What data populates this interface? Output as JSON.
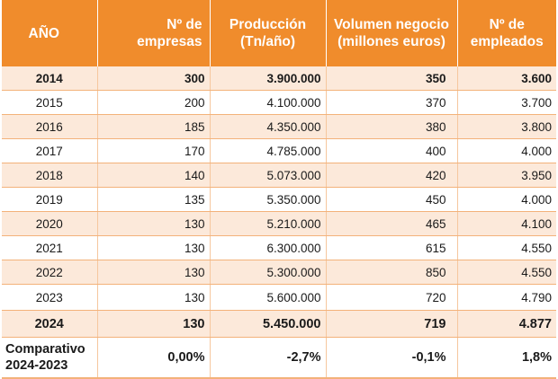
{
  "headers": [
    {
      "line1": "AÑO",
      "line2": ""
    },
    {
      "line1": "Nº de",
      "line2": "empresas"
    },
    {
      "line1": "Producción",
      "line2": "(Tn/año)"
    },
    {
      "line1": "Volumen negocio",
      "line2": "(millones euros)"
    },
    {
      "line1": "Nº de",
      "line2": "empleados"
    }
  ],
  "rows": [
    {
      "year": "2014",
      "empresas": "300",
      "produccion": "3.900.000",
      "volumen": "350",
      "empleados": "3.600"
    },
    {
      "year": "2015",
      "empresas": "200",
      "produccion": "4.100.000",
      "volumen": "370",
      "empleados": "3.700"
    },
    {
      "year": "2016",
      "empresas": "185",
      "produccion": "4.350.000",
      "volumen": "380",
      "empleados": "3.800"
    },
    {
      "year": "2017",
      "empresas": "170",
      "produccion": "4.785.000",
      "volumen": "400",
      "empleados": "4.000"
    },
    {
      "year": "2018",
      "empresas": "140",
      "produccion": "5.073.000",
      "volumen": "420",
      "empleados": "3.950"
    },
    {
      "year": "2019",
      "empresas": "135",
      "produccion": "5.350.000",
      "volumen": "450",
      "empleados": "4.000"
    },
    {
      "year": "2020",
      "empresas": "130",
      "produccion": "5.210.000",
      "volumen": "465",
      "empleados": "4.100"
    },
    {
      "year": "2021",
      "empresas": "130",
      "produccion": "6.300.000",
      "volumen": "615",
      "empleados": "4.550"
    },
    {
      "year": "2022",
      "empresas": "130",
      "produccion": "5.300.000",
      "volumen": "850",
      "empleados": "4.550"
    },
    {
      "year": "2023",
      "empresas": "130",
      "produccion": "5.600.000",
      "volumen": "720",
      "empleados": "4.790"
    },
    {
      "year": "2024",
      "empresas": "130",
      "produccion": "5.450.000",
      "volumen": "719",
      "empleados": "4.877"
    }
  ],
  "comparison": {
    "label_line1": "Comparativo",
    "label_line2": "2024-2023",
    "empresas": "0,00%",
    "produccion": "-2,7%",
    "volumen": "-0,1%",
    "empleados": "1,8%"
  },
  "colors": {
    "header_bg": "#f08c2c",
    "shade_bg": "#fce9da",
    "border": "#f3b27a"
  }
}
